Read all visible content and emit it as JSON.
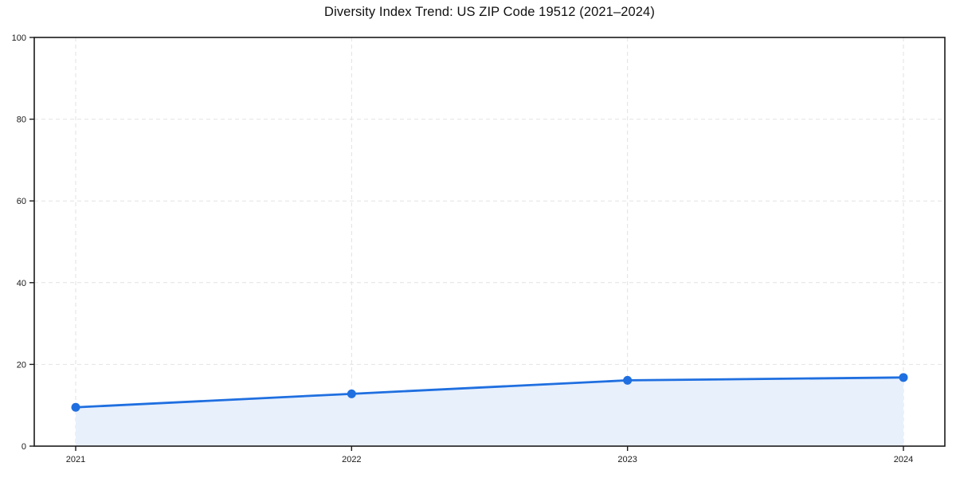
{
  "chart_data": {
    "type": "area",
    "title": "Diversity Index Trend: US ZIP Code 19512 (2021–2024)",
    "series_name": "Diversity Index",
    "categories": [
      "2021",
      "2022",
      "2023",
      "2024"
    ],
    "values": [
      9.5,
      12.8,
      16.1,
      16.8
    ],
    "xlabel": "",
    "ylabel": "",
    "ylim": [
      0,
      100
    ],
    "yticks": [
      0,
      20,
      40,
      60,
      80,
      100
    ],
    "grid": true,
    "grid_style": "dashed",
    "legend_position": "none",
    "colors": {
      "line": "#1f6fe0",
      "marker": "#1f6fe0",
      "fill": "#e8f0fc",
      "gridline": "#e2e2e2",
      "spine": "#1a1a1a",
      "tick_label": "#1a1a1a",
      "title": "#111111",
      "background": "#ffffff"
    }
  }
}
